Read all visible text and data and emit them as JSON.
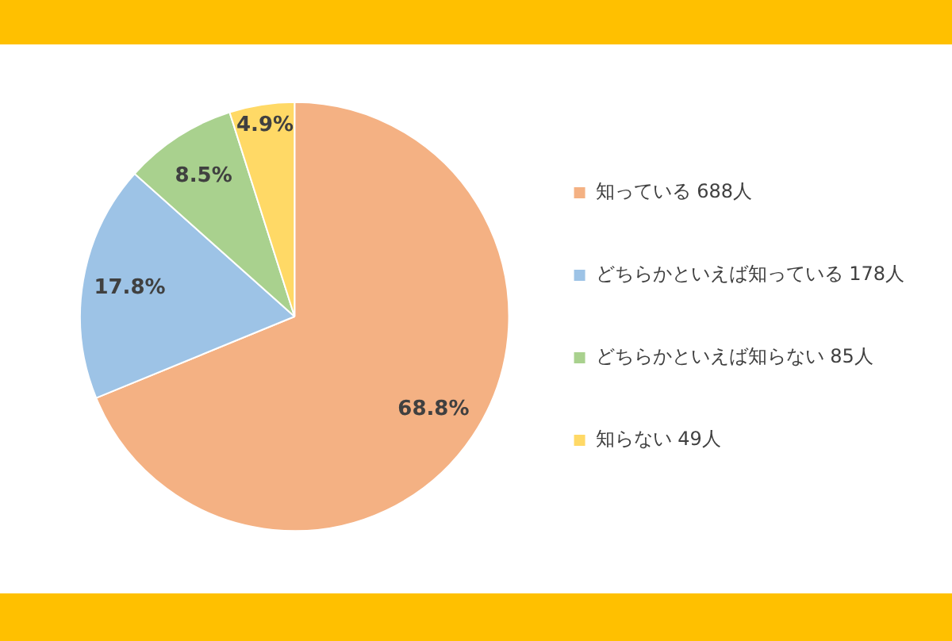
{
  "chart_data": {
    "type": "pie",
    "categories": [
      "知っている 688人",
      "どちらかといえば知っている 178人",
      "どちらかといえば知らない 85人",
      "知らない 49人"
    ],
    "values": [
      68.8,
      17.8,
      8.5,
      4.9
    ],
    "colors": [
      "#f4b183",
      "#9dc3e6",
      "#a9d18e",
      "#ffd966"
    ],
    "value_labels": [
      "68.8%",
      "17.8%",
      "8.5%",
      "4.9%"
    ],
    "legend": "right"
  }
}
